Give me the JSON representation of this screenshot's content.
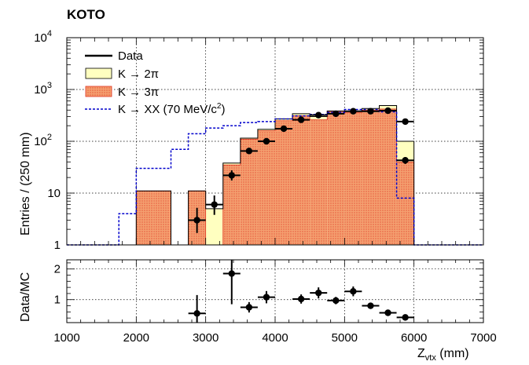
{
  "chart_data": [
    {
      "type": "histogram",
      "experiment_label": "KOTO",
      "ylabel": "Entries / (250 mm)",
      "xlabel": "",
      "xlim": [
        1000,
        7000
      ],
      "ylim": [
        1,
        10000
      ],
      "yscale": "log",
      "ytick_labels": [
        "1",
        "10",
        "10",
        "10",
        "10"
      ],
      "ytick_exponents": [
        "",
        "",
        "2",
        "3",
        "4"
      ],
      "grid": true,
      "legend_position": "top-left",
      "bin_edges": [
        1000,
        1250,
        1500,
        1750,
        2000,
        2250,
        2500,
        2750,
        3000,
        3250,
        3500,
        3750,
        4000,
        4250,
        4500,
        4750,
        5000,
        5250,
        5500,
        5750,
        6000,
        6250,
        6500,
        6750,
        7000
      ],
      "series": [
        {
          "name": "K → 2π",
          "kind": "stacked-fill",
          "color": "#ffffc0",
          "values": [
            0,
            0,
            0,
            0,
            11,
            11,
            0,
            11,
            5,
            38,
            115,
            170,
            270,
            340,
            300,
            385,
            380,
            430,
            490,
            100,
            0,
            0,
            0,
            0
          ]
        },
        {
          "name": "K → 3π",
          "kind": "stacked-fill-hatched",
          "color": "#f4a070",
          "values": [
            0,
            0,
            0,
            0,
            11,
            11,
            0,
            11,
            0,
            35,
            110,
            160,
            250,
            310,
            260,
            380,
            360,
            400,
            420,
            40,
            0,
            0,
            0,
            0
          ]
        },
        {
          "name": "K → XX (70 MeV/c²)",
          "kind": "dashed-step",
          "color": "#0000cc",
          "values": [
            0,
            0,
            0,
            4,
            30,
            30,
            70,
            140,
            180,
            200,
            230,
            240,
            270,
            310,
            330,
            360,
            410,
            410,
            370,
            8,
            0,
            0,
            0,
            0
          ]
        },
        {
          "name": "Data",
          "kind": "points",
          "color": "#000000",
          "x": [
            2875,
            3125,
            3375,
            3625,
            3875,
            4125,
            4375,
            4625,
            4875,
            5125,
            5375,
            5625,
            5875
          ],
          "y": [
            3,
            6,
            22,
            65,
            100,
            175,
            260,
            320,
            340,
            380,
            380,
            390,
            240
          ],
          "yerr_low": [
            1.3,
            2.2,
            4.5,
            8,
            10,
            13,
            16,
            18,
            18,
            19,
            19,
            20,
            15
          ],
          "yerr_high": [
            2.2,
            3,
            5.5,
            8,
            10,
            13,
            16,
            18,
            18,
            19,
            19,
            20,
            15
          ],
          "extra_points": [
            {
              "x": 5875,
              "y": 43,
              "err": 6.5
            }
          ]
        }
      ]
    },
    {
      "type": "scatter",
      "ylabel": "Data/MC",
      "xlabel": "Z",
      "xlabel_subscript": "vtx",
      "xlabel_unit": " (mm)",
      "xlim": [
        1000,
        7000
      ],
      "ylim": [
        0.25,
        2.3
      ],
      "xtick_labels": [
        "1000",
        "2000",
        "3000",
        "4000",
        "5000",
        "6000",
        "7000"
      ],
      "ytick_labels": [
        "1",
        "2"
      ],
      "grid": true,
      "points": [
        {
          "x": 2875,
          "y": 0.55,
          "err": 0.6
        },
        {
          "x": 3375,
          "y": 1.85,
          "err": 1.0
        },
        {
          "x": 3625,
          "y": 0.75,
          "err": 0.17
        },
        {
          "x": 3875,
          "y": 1.08,
          "err": 0.2
        },
        {
          "x": 4375,
          "y": 1.02,
          "err": 0.15
        },
        {
          "x": 4625,
          "y": 1.22,
          "err": 0.18
        },
        {
          "x": 4875,
          "y": 0.97,
          "err": 0.12
        },
        {
          "x": 5125,
          "y": 1.27,
          "err": 0.16
        },
        {
          "x": 5375,
          "y": 0.8,
          "err": 0.08
        },
        {
          "x": 5625,
          "y": 0.57,
          "err": 0.05
        },
        {
          "x": 5875,
          "y": 0.42,
          "err": 0.06
        }
      ]
    }
  ],
  "legend": {
    "data": "Data",
    "k2pi": "K → 2π",
    "k3pi": "K → 3π",
    "kxx": "K → XX (70 MeV/c",
    "kxx_sup": "2",
    "kxx_end": ")"
  }
}
